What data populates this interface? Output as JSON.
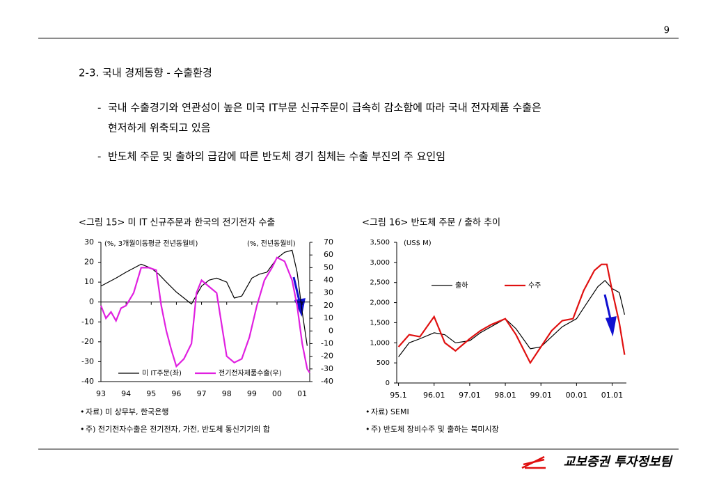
{
  "page_number": "9",
  "heading": "2-3. 국내 경제동향 - 수출환경",
  "bullets": [
    [
      "국내 수출경기와 연관성이 높은 미국 IT부문 신규주문이 급속히 감소함에 따라 국내 전자제품 수출은",
      "현저하게 위축되고 있음"
    ],
    [
      "반도체 주문 및 출하의 급감에 따른 반도체 경기 침체는 수출 부진의 주 요인임"
    ]
  ],
  "chart_data": [
    {
      "type": "line",
      "title": "<그림 15> 미 IT 신규주문과 한국의 전기전자 수출",
      "annotations": [
        "(%, 3개월이동평균 전년동월비)",
        "(%, 전년동월비)"
      ],
      "xlim": [
        93,
        101.3
      ],
      "xticks": [
        93,
        94,
        95,
        96,
        97,
        98,
        99,
        {
          "value": 100,
          "label": "00"
        },
        {
          "value": 101,
          "label": "01"
        }
      ],
      "ylim": [
        -40,
        30
      ],
      "yticks": [
        -40,
        -30,
        -20,
        -10,
        0,
        10,
        20,
        30
      ],
      "y2lim": [
        -40,
        70
      ],
      "y2ticks": [
        -40,
        -30,
        -20,
        -10,
        0,
        10,
        20,
        30,
        40,
        50,
        60,
        70
      ],
      "legend": "bottom",
      "series": [
        {
          "name": "미 IT주문(좌)",
          "color": "#000000",
          "x": [
            93,
            93.3,
            93.6,
            94,
            94.3,
            94.6,
            95,
            95.3,
            95.6,
            96,
            96.3,
            96.6,
            97,
            97.3,
            97.6,
            98,
            98.3,
            98.6,
            99,
            99.3,
            99.6,
            100,
            100.3,
            100.6,
            100.8,
            101,
            101.2
          ],
          "values": [
            8,
            10,
            12,
            15,
            17,
            19,
            17,
            14,
            10,
            5,
            2,
            -1,
            8,
            11,
            12,
            10,
            2,
            3,
            12,
            14,
            15,
            22,
            25,
            26,
            15,
            -5,
            -22
          ]
        },
        {
          "name": "전기전자제품수출(우)",
          "color": "#e020e0",
          "axis": "y2",
          "x": [
            93,
            93.2,
            93.4,
            93.6,
            93.8,
            94,
            94.3,
            94.6,
            94.9,
            95.2,
            95.4,
            95.6,
            95.8,
            96,
            96.3,
            96.6,
            96.8,
            97,
            97.3,
            97.6,
            97.8,
            98,
            98.3,
            98.6,
            98.9,
            99.2,
            99.5,
            99.8,
            100,
            100.3,
            100.6,
            100.8,
            101,
            101.2,
            101.3
          ],
          "values": [
            20,
            10,
            15,
            8,
            18,
            20,
            30,
            50,
            50,
            48,
            20,
            0,
            -15,
            -28,
            -22,
            -10,
            30,
            40,
            35,
            30,
            5,
            -20,
            -25,
            -22,
            -5,
            20,
            40,
            50,
            58,
            55,
            40,
            20,
            -10,
            -30,
            -33
          ]
        }
      ]
    },
    {
      "type": "line",
      "title": "<그림 16> 반도체 주문 / 출하 추이",
      "annotations": [
        "(US$ M)"
      ],
      "xlim": [
        94.95,
        101.4
      ],
      "xticks": [
        {
          "value": 95,
          "label": "95.1"
        },
        {
          "value": 96,
          "label": "96.01"
        },
        {
          "value": 97,
          "label": "97.01"
        },
        {
          "value": 98,
          "label": "98.01"
        },
        {
          "value": 99,
          "label": "99.01"
        },
        {
          "value": 100,
          "label": "00.01"
        },
        {
          "value": 101,
          "label": "01.01"
        }
      ],
      "ylim": [
        0,
        3500
      ],
      "yticks": [
        0,
        500,
        {
          "value": 1000,
          "label": "1,000"
        },
        {
          "value": 1500,
          "label": "1,500"
        },
        {
          "value": 2000,
          "label": "2,000"
        },
        {
          "value": 2500,
          "label": "2,500"
        },
        {
          "value": 3000,
          "label": "3,000"
        },
        {
          "value": 3500,
          "label": "3,500"
        }
      ],
      "legend": "top",
      "series": [
        {
          "name": "출하",
          "color": "#000000",
          "x": [
            95,
            95.3,
            95.6,
            96,
            96.3,
            96.6,
            97,
            97.3,
            97.6,
            98,
            98.3,
            98.7,
            99,
            99.3,
            99.6,
            100,
            100.3,
            100.6,
            100.8,
            101,
            101.2,
            101.35
          ],
          "values": [
            650,
            1000,
            1100,
            1250,
            1200,
            1000,
            1050,
            1250,
            1400,
            1600,
            1350,
            850,
            900,
            1150,
            1400,
            1600,
            2000,
            2400,
            2550,
            2350,
            2250,
            1700
          ]
        },
        {
          "name": "수주",
          "color": "#e01010",
          "x": [
            95,
            95.3,
            95.6,
            96,
            96.3,
            96.6,
            97,
            97.3,
            97.6,
            98,
            98.3,
            98.7,
            99,
            99.3,
            99.6,
            99.9,
            100.2,
            100.5,
            100.7,
            100.85,
            101,
            101.2,
            101.35
          ],
          "values": [
            900,
            1200,
            1150,
            1650,
            1000,
            800,
            1100,
            1300,
            1450,
            1600,
            1200,
            500,
            900,
            1300,
            1550,
            1600,
            2300,
            2800,
            2950,
            2950,
            2300,
            1500,
            700
          ]
        }
      ]
    }
  ],
  "footnotes": [
    [
      "자료) 미 상무부, 한국은행",
      "주) 전기전자수출은 전기전자, 가전, 반도체 통신기기의 합"
    ],
    [
      "자료) SEMI",
      "주) 반도체 장비수주 및 출하는 북미시장"
    ]
  ],
  "footer": "교보증권 투자정보팀"
}
